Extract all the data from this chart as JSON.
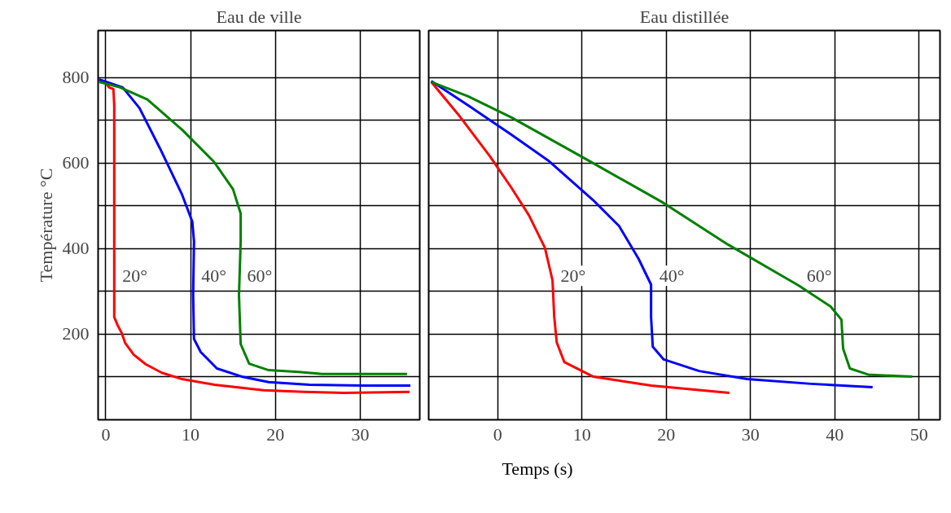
{
  "chart_data": [
    {
      "type": "line",
      "title": "Eau de ville",
      "ylabel": "Température °C",
      "xlim": [
        -0.9,
        37
      ],
      "ylim": [
        0,
        910
      ],
      "xticks": [
        0,
        10,
        20,
        30
      ],
      "yticks": [
        {
          "value": 100,
          "label": null
        },
        200,
        {
          "value": 300,
          "label": null
        },
        400,
        {
          "value": 500,
          "label": null
        },
        600,
        {
          "value": 700,
          "label": null
        },
        800
      ],
      "grid": true,
      "legend": false,
      "series": [
        {
          "name": "20°",
          "color": "#ff0000",
          "x": [
            -0.8,
            0,
            0.4,
            0.9,
            1.0,
            1.0,
            1.0,
            1.4,
            1.9,
            2.3,
            3.3,
            4.7,
            6.6,
            9.0,
            12.8,
            18.6,
            23.4,
            28.1,
            35.8
          ],
          "values": [
            794,
            787,
            777,
            773,
            735,
            469,
            240,
            221,
            202,
            179,
            152,
            130,
            110,
            95,
            82,
            69,
            65,
            63,
            65
          ]
        },
        {
          "name": "40°",
          "color": "#0000ff",
          "x": [
            -0.8,
            2.0,
            3.97,
            6.4,
            9.0,
            10.2,
            10.4,
            10.3,
            10.4,
            11.2,
            13.1,
            16.0,
            19.2,
            24.0,
            30.3,
            35.9
          ],
          "values": [
            796,
            777,
            729,
            634,
            526,
            463,
            417,
            291,
            189,
            158,
            120,
            101,
            88,
            82,
            80,
            80
          ]
        },
        {
          "name": "60°",
          "color": "#008000",
          "x": [
            -0.8,
            1.7,
            4.9,
            9.0,
            12.8,
            15.0,
            15.9,
            15.9,
            15.7,
            15.9,
            16.9,
            19.2,
            22.7,
            25.5,
            35.5
          ],
          "values": [
            790,
            777,
            749,
            678,
            602,
            539,
            482,
            417,
            291,
            177,
            131,
            116,
            112,
            107,
            107
          ]
        }
      ]
    },
    {
      "type": "line",
      "title": "Eau distillée",
      "xlabel": "Temps (s)",
      "xlim": [
        -8.2,
        52.5
      ],
      "ylim": [
        0,
        910
      ],
      "xticks": [
        0,
        10,
        20,
        30,
        40,
        50
      ],
      "yticks": [
        100,
        200,
        300,
        400,
        500,
        600,
        700,
        800
      ],
      "grid": true,
      "legend": false,
      "tick_labels": "x",
      "series": [
        {
          "name": "20°",
          "color": "#ff0000",
          "x": [
            -7.9,
            -4.7,
            -0.9,
            1.6,
            3.7,
            5.6,
            6.5,
            6.7,
            7.0,
            7.9,
            11.3,
            18.2,
            27.5
          ],
          "values": [
            790,
            714,
            615,
            543,
            478,
            402,
            326,
            242,
            181,
            135,
            101,
            80,
            63
          ]
        },
        {
          "name": "40°",
          "color": "#0000ff",
          "x": [
            -7.9,
            -3.5,
            1.6,
            6.0,
            11.3,
            14.4,
            16.7,
            18.2,
            18.2,
            18.4,
            19.7,
            23.9,
            29.6,
            37.2,
            44.5
          ],
          "values": [
            792,
            735,
            667,
            606,
            514,
            453,
            377,
            316,
            240,
            171,
            141,
            114,
            95,
            84,
            76
          ]
        },
        {
          "name": "60°",
          "color": "#008000",
          "x": [
            -7.9,
            -3.5,
            1.6,
            10.6,
            19.5,
            27.3,
            35.7,
            39.5,
            40.8,
            41.0,
            41.8,
            44.1,
            49.2
          ],
          "values": [
            790,
            756,
            707,
            608,
            509,
            410,
            314,
            265,
            234,
            166,
            120,
            105,
            101
          ]
        }
      ]
    }
  ]
}
